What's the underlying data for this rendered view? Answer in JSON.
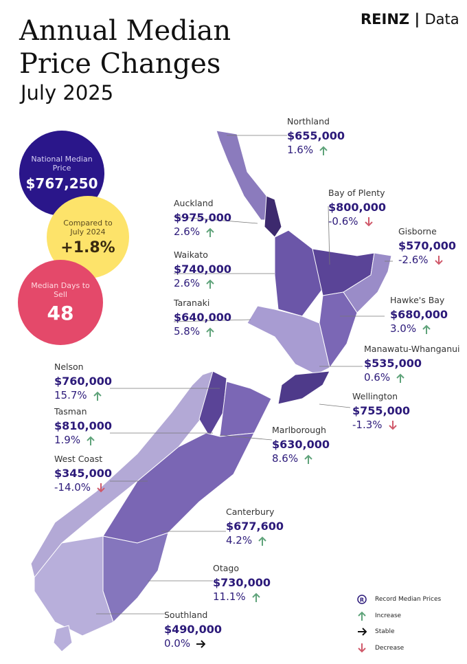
{
  "header": {
    "logo_left": "REINZ",
    "logo_right": "Data",
    "title_line1": "Annual Median",
    "title_line2": "Price Changes",
    "subtitle": "July 2025"
  },
  "stats": [
    {
      "label": "National Median Price",
      "value": "$767,250"
    },
    {
      "label": "Compared to July 2024",
      "value": "+1.8%"
    },
    {
      "label": "Median Days to Sell",
      "value": "48"
    }
  ],
  "regions": [
    {
      "name": "Northland",
      "price": "$655,000",
      "change": "1.6%",
      "trend": "increase"
    },
    {
      "name": "Bay of Plenty",
      "price": "$800,000",
      "change": "-0.6%",
      "trend": "decrease"
    },
    {
      "name": "Gisborne",
      "price": "$570,000",
      "change": "-2.6%",
      "trend": "decrease"
    },
    {
      "name": "Auckland",
      "price": "$975,000",
      "change": "2.6%",
      "trend": "increase"
    },
    {
      "name": "Waikato",
      "price": "$740,000",
      "change": "2.6%",
      "trend": "increase"
    },
    {
      "name": "Taranaki",
      "price": "$640,000",
      "change": "5.8%",
      "trend": "increase"
    },
    {
      "name": "Hawke's Bay",
      "price": "$680,000",
      "change": "3.0%",
      "trend": "increase"
    },
    {
      "name": "Manawatu-Whanganui",
      "price": "$535,000",
      "change": "0.6%",
      "trend": "increase"
    },
    {
      "name": "Wellington",
      "price": "$755,000",
      "change": "-1.3%",
      "trend": "decrease"
    },
    {
      "name": "Nelson",
      "price": "$760,000",
      "change": "15.7%",
      "trend": "increase"
    },
    {
      "name": "Tasman",
      "price": "$810,000",
      "change": "1.9%",
      "trend": "increase"
    },
    {
      "name": "West Coast",
      "price": "$345,000",
      "change": "-14.0%",
      "trend": "decrease"
    },
    {
      "name": "Marlborough",
      "price": "$630,000",
      "change": "8.6%",
      "trend": "increase"
    },
    {
      "name": "Canterbury",
      "price": "$677,600",
      "change": "4.2%",
      "trend": "increase"
    },
    {
      "name": "Otago",
      "price": "$730,000",
      "change": "11.1%",
      "trend": "increase"
    },
    {
      "name": "Southland",
      "price": "$490,000",
      "change": "0.0%",
      "trend": "stable"
    }
  ],
  "legend": [
    {
      "label": "Record Median Prices",
      "icon": "record"
    },
    {
      "label": "Increase",
      "icon": "increase"
    },
    {
      "label": "Stable",
      "icon": "stable"
    },
    {
      "label": "Decrease",
      "icon": "decrease"
    }
  ]
}
